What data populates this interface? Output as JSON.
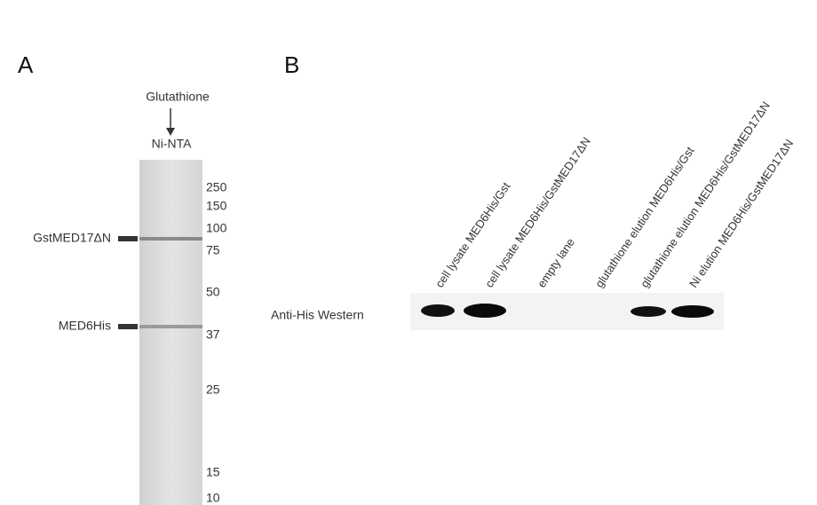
{
  "panel_a": {
    "label": "A",
    "top_labels": [
      "Glutathione",
      "Ni-NTA"
    ],
    "markers": [
      "250",
      "150",
      "100",
      "75",
      "50",
      "37",
      "25",
      "15",
      "10"
    ],
    "bands": [
      "GstMED17ΔN",
      "MED6His"
    ]
  },
  "panel_b": {
    "label": "B",
    "row_label": "Anti-His Western",
    "lanes": [
      "cell lysate MED6His/Gst",
      "cell lysate MED6His/GstMED17ΔN",
      "empty lane",
      "glutathione elution MED6His/Gst",
      "glutathione elution MED6His/GstMED17ΔN",
      "Ni elution MED6His/GstMED17ΔN"
    ]
  }
}
